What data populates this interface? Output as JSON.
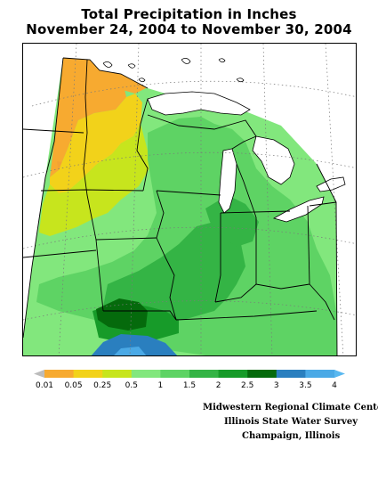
{
  "title": {
    "line1": "Total Precipitation in Inches",
    "line2": "November 24, 2004 to November 30, 2004"
  },
  "legend": {
    "labels": [
      "0.01",
      "0.05",
      "0.25",
      "0.5",
      "1",
      "1.5",
      "2",
      "2.5",
      "3",
      "3.5",
      "4"
    ],
    "colors": [
      "#bcbcbc",
      "#f7aa30",
      "#f2d21a",
      "#c7e51d",
      "#82e77d",
      "#5ed364",
      "#34b445",
      "#179b29",
      "#056a0c",
      "#2a7fbf",
      "#4aa9e6",
      "#59b8f0"
    ]
  },
  "credits": {
    "line1": "Midwestern Regional Climate Center",
    "line2": "Illinois State Water Survey",
    "line3": "Champaign, Illinois"
  }
}
